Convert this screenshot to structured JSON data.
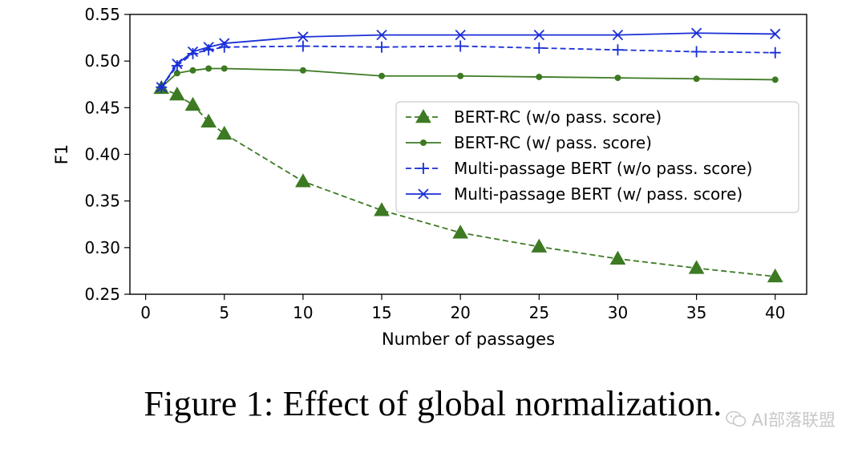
{
  "chart_data": {
    "type": "line",
    "title": "",
    "xlabel": "Number of passages",
    "ylabel": "F1",
    "xlim": [
      -1,
      42
    ],
    "ylim": [
      0.25,
      0.55
    ],
    "xticks": [
      "0",
      "5",
      "10",
      "15",
      "20",
      "25",
      "30",
      "35",
      "40"
    ],
    "yticks": [
      "0.25",
      "0.30",
      "0.35",
      "0.40",
      "0.45",
      "0.50",
      "0.55"
    ],
    "grid": false,
    "legend_position": "center-right",
    "x": [
      1,
      2,
      3,
      4,
      5,
      10,
      15,
      20,
      25,
      30,
      35,
      40
    ],
    "series": [
      {
        "name": "BERT-RC (w/o pass. score)",
        "color": "#3d7a23",
        "line": "dashed",
        "marker": "triangle",
        "values": [
          0.471,
          0.464,
          0.453,
          0.435,
          0.422,
          0.371,
          0.34,
          0.316,
          0.301,
          0.288,
          0.278,
          0.269
        ]
      },
      {
        "name": "BERT-RC (w/ pass. score)",
        "color": "#3d7a23",
        "line": "solid",
        "marker": "dot",
        "values": [
          0.472,
          0.487,
          0.49,
          0.492,
          0.492,
          0.49,
          0.484,
          0.484,
          0.483,
          0.482,
          0.481,
          0.48
        ]
      },
      {
        "name": "Multi-passage BERT (w/o pass. score)",
        "color": "#1a2fd6",
        "line": "dashed",
        "marker": "plus",
        "values": [
          0.472,
          0.495,
          0.508,
          0.512,
          0.515,
          0.516,
          0.515,
          0.516,
          0.514,
          0.512,
          0.51,
          0.509
        ]
      },
      {
        "name": "Multi-passage BERT (w/ pass. score)",
        "color": "#1a2fd6",
        "line": "solid",
        "marker": "x",
        "values": [
          0.472,
          0.497,
          0.51,
          0.515,
          0.519,
          0.526,
          0.528,
          0.528,
          0.528,
          0.528,
          0.53,
          0.529
        ]
      }
    ]
  },
  "caption": "Figure 1: Effect of global normalization.",
  "watermark": "AI部落联盟"
}
